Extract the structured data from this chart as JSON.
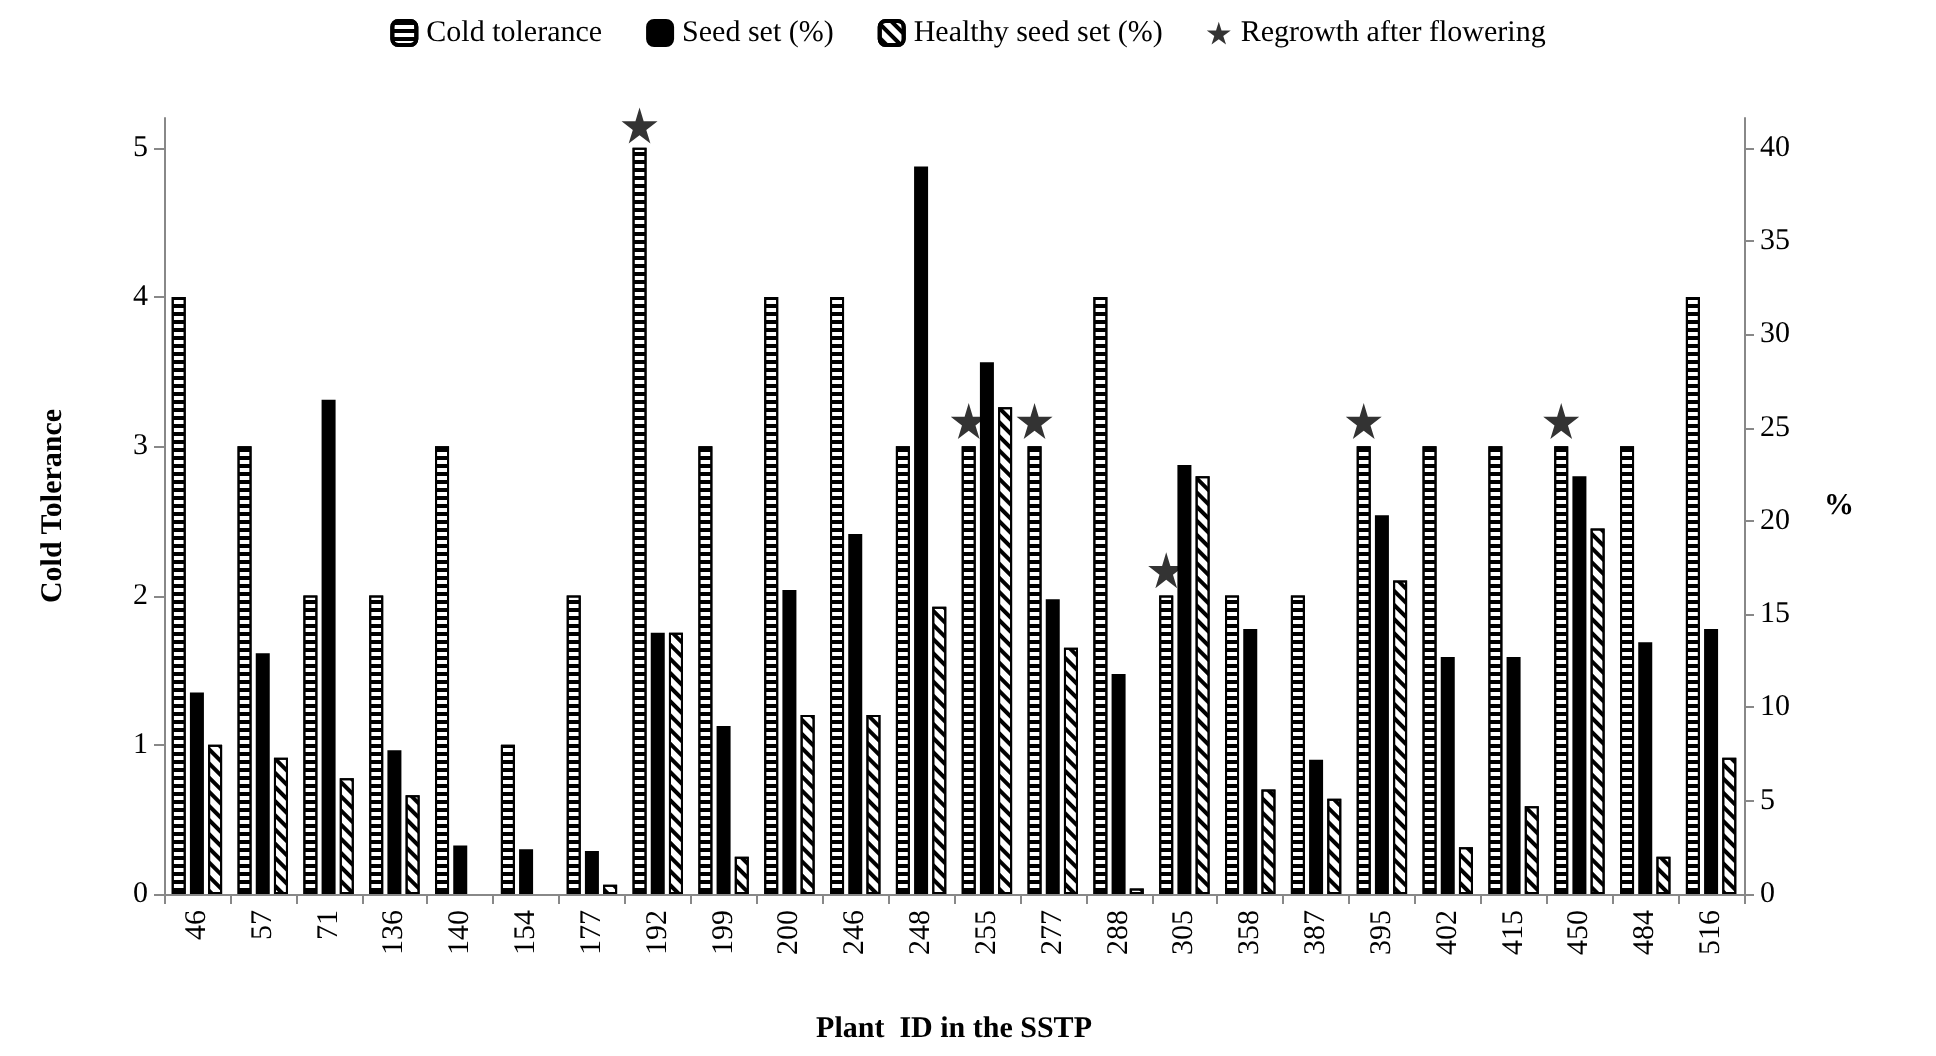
{
  "chart_data": {
    "type": "bar",
    "xlabel": "Plant  ID in the SSTP",
    "ylabel": "Cold Tolerance",
    "y2label": "%",
    "categories": [
      "46",
      "57",
      "71",
      "136",
      "140",
      "154",
      "177",
      "192",
      "199",
      "200",
      "246",
      "248",
      "255",
      "277",
      "288",
      "305",
      "358",
      "387",
      "395",
      "402",
      "415",
      "450",
      "484",
      "516"
    ],
    "series": [
      {
        "name": "Cold tolerance",
        "color": "#ffffff",
        "values": [
          4,
          3,
          2,
          2,
          3,
          1,
          2,
          5,
          3,
          4,
          4,
          3,
          3,
          3,
          4,
          2,
          2,
          2,
          3,
          3,
          3,
          3,
          3,
          4
        ]
      },
      {
        "name": "Seed set (%)",
        "axis": "y2",
        "color": "#000000",
        "values": [
          10.8,
          12.9,
          26.5,
          7.7,
          2.6,
          2.4,
          2.3,
          14.0,
          9.0,
          16.3,
          19.3,
          39.0,
          28.5,
          15.8,
          11.8,
          23.0,
          14.2,
          7.2,
          20.3,
          12.7,
          12.7,
          22.4,
          13.5,
          14.2
        ]
      },
      {
        "name": "Healthy seed set (%)",
        "axis": "y2",
        "color": "#ffffff",
        "values": [
          8.0,
          7.3,
          6.2,
          5.3,
          0,
          0,
          0.5,
          14.0,
          2.0,
          9.6,
          9.6,
          15.4,
          26.1,
          13.2,
          0.3,
          22.4,
          5.6,
          5.1,
          16.8,
          2.5,
          4.7,
          19.6,
          2.0,
          7.3
        ]
      },
      {
        "name": "Regrowth after flowering",
        "type": "scatter",
        "marker": "star",
        "color": "#000000",
        "x": [
          "192",
          "255",
          "277",
          "305",
          "395",
          "450"
        ],
        "values": [
          5.15,
          3.17,
          3.17,
          2.17,
          3.17,
          3.17
        ]
      }
    ],
    "ylim": [
      0,
      5.2
    ],
    "yticks": [
      0,
      1,
      2,
      3,
      4,
      5
    ],
    "y2lim": [
      0,
      41.6
    ],
    "y2ticks": [
      0,
      5,
      10,
      15,
      20,
      25,
      30,
      35,
      40
    ],
    "grid": false,
    "legend": "top"
  }
}
